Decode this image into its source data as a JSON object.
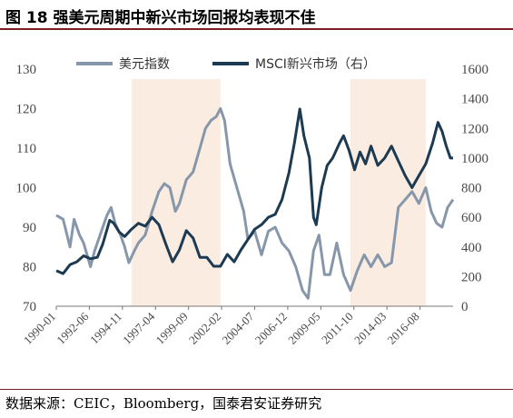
{
  "header": {
    "title": "图 18  强美元周期中新兴市场回报均表现不佳"
  },
  "footer": {
    "source": "数据来源：CEIC，Bloomberg，国泰君安证券研究"
  },
  "chart_data": {
    "type": "line",
    "x": [
      "1990-01",
      "1992-06",
      "1994-11",
      "1997-04",
      "1999-09",
      "2002-02",
      "2004-07",
      "2006-12",
      "2009-05",
      "2011-10",
      "2014-03",
      "2016-08"
    ],
    "x_range": [
      1990.0,
      2019.0
    ],
    "ylim_left": [
      70,
      130
    ],
    "yticks_left": [
      70,
      80,
      90,
      100,
      110,
      120,
      130
    ],
    "ylim_right": [
      0,
      1600
    ],
    "yticks_right": [
      0,
      200,
      400,
      600,
      800,
      1000,
      1200,
      1400,
      1600
    ],
    "shaded_periods": [
      [
        1995.5,
        2002.0
      ],
      [
        2011.5,
        2017.0
      ]
    ],
    "shade_color": "#fbece2",
    "series": [
      {
        "name": "美元指数",
        "axis": "left",
        "color": "#8797ab",
        "points": [
          [
            1990.0,
            93
          ],
          [
            1990.5,
            92
          ],
          [
            1991.0,
            85
          ],
          [
            1991.3,
            92
          ],
          [
            1991.7,
            88
          ],
          [
            1992.0,
            86
          ],
          [
            1992.5,
            80
          ],
          [
            1992.8,
            84
          ],
          [
            1993.2,
            88
          ],
          [
            1993.7,
            93
          ],
          [
            1994.0,
            95
          ],
          [
            1994.3,
            91
          ],
          [
            1994.7,
            88
          ],
          [
            1995.0,
            85
          ],
          [
            1995.3,
            81
          ],
          [
            1995.7,
            84
          ],
          [
            1996.0,
            86
          ],
          [
            1996.5,
            88
          ],
          [
            1997.0,
            94
          ],
          [
            1997.5,
            99
          ],
          [
            1997.9,
            101
          ],
          [
            1998.3,
            100
          ],
          [
            1998.7,
            94
          ],
          [
            1999.0,
            96
          ],
          [
            1999.5,
            102
          ],
          [
            2000.0,
            104
          ],
          [
            2000.5,
            110
          ],
          [
            2000.9,
            115
          ],
          [
            2001.3,
            117
          ],
          [
            2001.7,
            118
          ],
          [
            2002.0,
            120
          ],
          [
            2002.3,
            117
          ],
          [
            2002.7,
            106
          ],
          [
            2003.2,
            100
          ],
          [
            2003.7,
            94
          ],
          [
            2004.0,
            87
          ],
          [
            2004.5,
            89
          ],
          [
            2005.0,
            83
          ],
          [
            2005.5,
            89
          ],
          [
            2006.0,
            90
          ],
          [
            2006.5,
            86
          ],
          [
            2007.0,
            84
          ],
          [
            2007.5,
            80
          ],
          [
            2008.0,
            74
          ],
          [
            2008.4,
            72
          ],
          [
            2008.8,
            84
          ],
          [
            2009.2,
            88
          ],
          [
            2009.6,
            78
          ],
          [
            2010.0,
            78
          ],
          [
            2010.5,
            86
          ],
          [
            2011.0,
            78
          ],
          [
            2011.5,
            74
          ],
          [
            2012.0,
            79
          ],
          [
            2012.5,
            83
          ],
          [
            2013.0,
            80
          ],
          [
            2013.5,
            83
          ],
          [
            2014.0,
            80
          ],
          [
            2014.5,
            81
          ],
          [
            2015.0,
            95
          ],
          [
            2015.5,
            97
          ],
          [
            2016.0,
            99
          ],
          [
            2016.5,
            96
          ],
          [
            2017.0,
            100
          ],
          [
            2017.4,
            94
          ],
          [
            2017.8,
            91
          ],
          [
            2018.2,
            90
          ],
          [
            2018.6,
            95
          ],
          [
            2019.0,
            97
          ]
        ]
      },
      {
        "name": "MSCI新兴市场（右）",
        "axis": "right",
        "color": "#1c3a52",
        "points": [
          [
            1990.0,
            240
          ],
          [
            1990.5,
            220
          ],
          [
            1991.0,
            280
          ],
          [
            1991.5,
            300
          ],
          [
            1992.0,
            340
          ],
          [
            1992.5,
            320
          ],
          [
            1993.0,
            330
          ],
          [
            1993.4,
            420
          ],
          [
            1993.9,
            580
          ],
          [
            1994.2,
            560
          ],
          [
            1994.6,
            500
          ],
          [
            1995.0,
            470
          ],
          [
            1995.5,
            520
          ],
          [
            1996.0,
            560
          ],
          [
            1996.5,
            540
          ],
          [
            1997.0,
            600
          ],
          [
            1997.5,
            550
          ],
          [
            1998.0,
            420
          ],
          [
            1998.5,
            300
          ],
          [
            1999.0,
            380
          ],
          [
            1999.5,
            510
          ],
          [
            2000.0,
            460
          ],
          [
            2000.5,
            330
          ],
          [
            2001.0,
            330
          ],
          [
            2001.5,
            270
          ],
          [
            2002.0,
            270
          ],
          [
            2002.5,
            350
          ],
          [
            2003.0,
            300
          ],
          [
            2003.5,
            380
          ],
          [
            2004.0,
            450
          ],
          [
            2004.5,
            520
          ],
          [
            2005.0,
            550
          ],
          [
            2005.5,
            600
          ],
          [
            2006.0,
            620
          ],
          [
            2006.5,
            720
          ],
          [
            2007.0,
            900
          ],
          [
            2007.4,
            1100
          ],
          [
            2007.8,
            1330
          ],
          [
            2008.1,
            1150
          ],
          [
            2008.5,
            1000
          ],
          [
            2008.8,
            600
          ],
          [
            2009.0,
            550
          ],
          [
            2009.4,
            800
          ],
          [
            2009.8,
            950
          ],
          [
            2010.2,
            1000
          ],
          [
            2010.7,
            1100
          ],
          [
            2011.0,
            1150
          ],
          [
            2011.4,
            1050
          ],
          [
            2011.8,
            920
          ],
          [
            2012.2,
            1040
          ],
          [
            2012.6,
            960
          ],
          [
            2013.0,
            1080
          ],
          [
            2013.5,
            950
          ],
          [
            2014.0,
            1000
          ],
          [
            2014.5,
            1080
          ],
          [
            2015.0,
            980
          ],
          [
            2015.5,
            880
          ],
          [
            2016.0,
            800
          ],
          [
            2016.5,
            880
          ],
          [
            2017.0,
            960
          ],
          [
            2017.5,
            1100
          ],
          [
            2017.9,
            1240
          ],
          [
            2018.2,
            1180
          ],
          [
            2018.5,
            1080
          ],
          [
            2018.8,
            1000
          ],
          [
            2019.0,
            1000
          ]
        ]
      }
    ]
  }
}
